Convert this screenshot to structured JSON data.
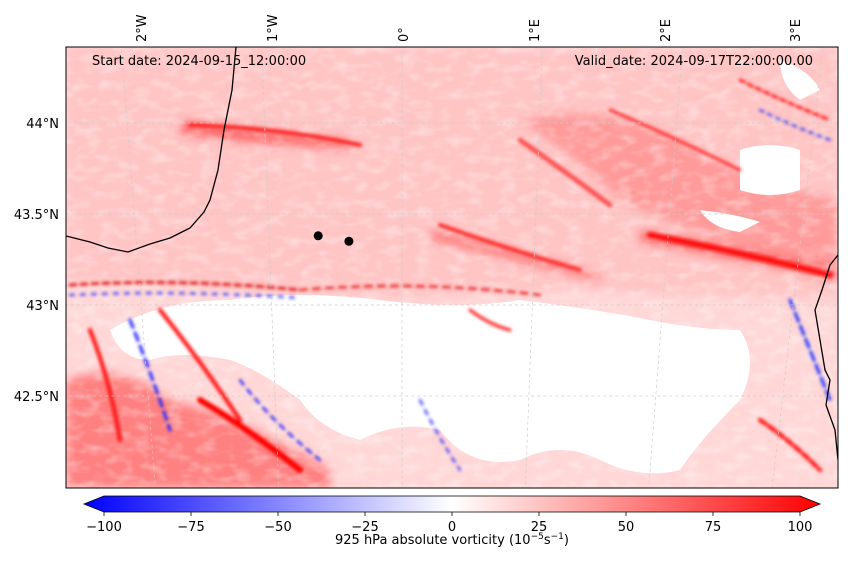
{
  "map": {
    "start_date": "Start date: 2024-09-15_12:00:00",
    "valid_date": "Valid_date: 2024-09-17T22:00:00.00",
    "lon_ticks": [
      "2°W",
      "1°W",
      "0°",
      "1°E",
      "2°E",
      "3°E"
    ],
    "lat_ticks": [
      "44°N",
      "43.5°N",
      "43°N",
      "42.5°N"
    ],
    "points": [
      {
        "lon": -0.63,
        "lat": 43.38
      },
      {
        "lon": -0.4,
        "lat": 43.35
      }
    ]
  },
  "colorbar": {
    "label": "925 hPa absolute vorticity (10$^{-5}$s$^{-1}$)",
    "label_display_main": "925 hPa absolute vorticity (10",
    "label_display_exp1": "−5",
    "label_display_mid": "s",
    "label_display_exp2": "−1",
    "label_display_end": ")",
    "ticks": [
      "−100",
      "−75",
      "−50",
      "−25",
      "0",
      "25",
      "50",
      "75",
      "100"
    ],
    "min": -100,
    "max": 100,
    "colors": {
      "low": "#0000ff",
      "mid": "#ffffff",
      "high": "#ff0000"
    }
  }
}
